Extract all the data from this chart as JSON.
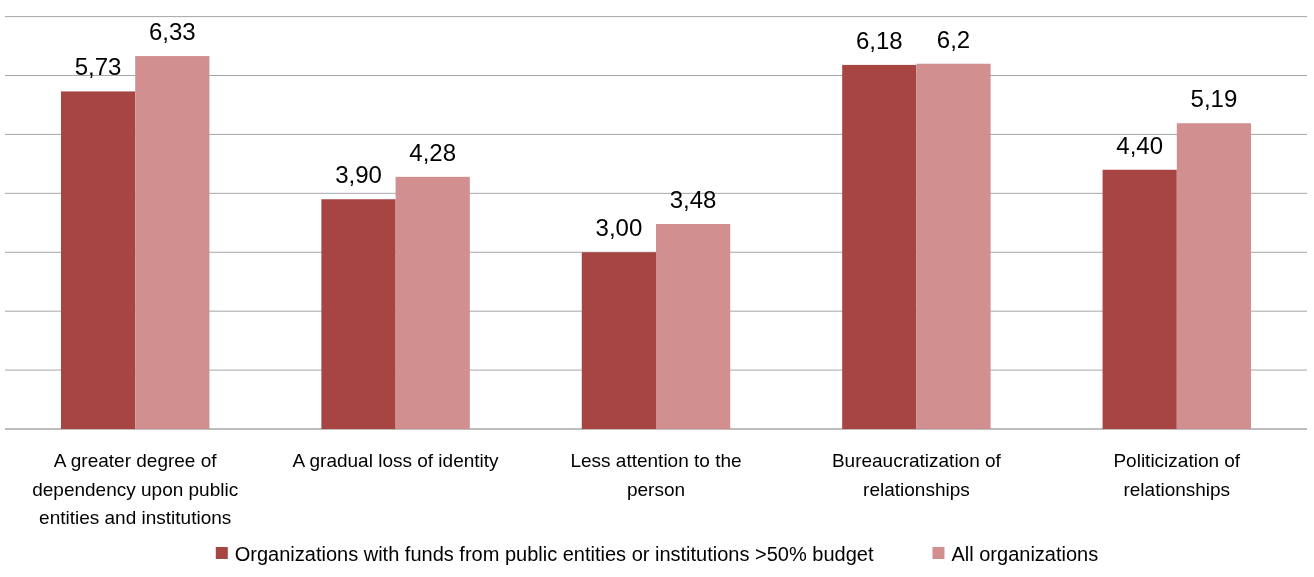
{
  "chart_data": {
    "type": "bar",
    "categories": [
      "A greater degree of dependency upon public entities and institutions",
      "A gradual loss of identity",
      "Less attention to the person",
      "Bureaucratization of relationships",
      "Politicization of relationships"
    ],
    "series": [
      {
        "name": "Organizations with funds from public entities or institutions >50% budget",
        "color": "#a64542",
        "values": [
          5.73,
          3.9,
          3.0,
          6.18,
          4.4
        ],
        "value_labels": [
          "5,73",
          "3,90",
          "3,00",
          "6,18",
          "4,40"
        ]
      },
      {
        "name": "All organizations",
        "color": "#d18f8f",
        "values": [
          6.33,
          4.28,
          3.48,
          6.2,
          5.19
        ],
        "value_labels": [
          "6,33",
          "4,28",
          "3,48",
          "6,2",
          "5,19"
        ]
      }
    ],
    "ylim": [
      0,
      7
    ],
    "yticks": [
      {
        "value": 0,
        "label": null
      },
      {
        "value": 1,
        "label": null
      },
      {
        "value": 2,
        "label": null
      },
      {
        "value": 3,
        "label": null
      },
      {
        "value": 4,
        "label": null
      },
      {
        "value": 5,
        "label": null
      },
      {
        "value": 6,
        "label": null
      },
      {
        "value": 7,
        "label": null
      }
    ],
    "tick_labels": "x",
    "grid": "y",
    "legend": "bottom"
  }
}
